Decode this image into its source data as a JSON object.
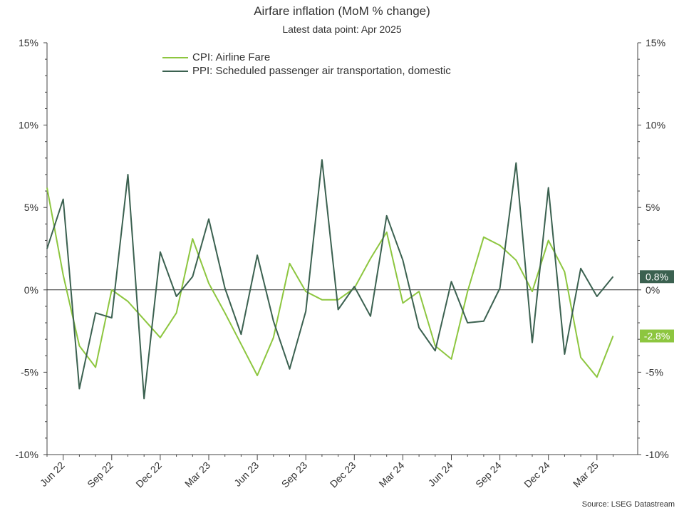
{
  "title": "Airfare inflation (MoM % change)",
  "subtitle": "Latest data point: Apr 2025",
  "source": "Source: LSEG Datastream",
  "legend": [
    {
      "label": "CPI: Airline Fare",
      "color": "#8dc63f"
    },
    {
      "label": "PPI: Scheduled passenger air transportation, domestic",
      "color": "#3b6150"
    }
  ],
  "chart_data": {
    "type": "line",
    "title": "Airfare inflation (MoM % change)",
    "subtitle": "Latest data point: Apr 2025",
    "x": [
      "May 22",
      "Jun 22",
      "Jul 22",
      "Aug 22",
      "Sep 22",
      "Oct 22",
      "Nov 22",
      "Dec 22",
      "Jan 23",
      "Feb 23",
      "Mar 23",
      "Apr 23",
      "May 23",
      "Jun 23",
      "Jul 23",
      "Aug 23",
      "Sep 23",
      "Oct 23",
      "Nov 23",
      "Dec 23",
      "Jan 24",
      "Feb 24",
      "Mar 24",
      "Apr 24",
      "May 24",
      "Jun 24",
      "Jul 24",
      "Aug 24",
      "Sep 24",
      "Oct 24",
      "Nov 24",
      "Dec 24",
      "Jan 25",
      "Feb 25",
      "Mar 25",
      "Apr 25"
    ],
    "x_tick_labels": [
      "Jun 22",
      "Sep 22",
      "Dec 22",
      "Mar 23",
      "Jun 23",
      "Sep 23",
      "Dec 23",
      "Mar 24",
      "Jun 24",
      "Sep 24",
      "Dec 24",
      "Mar 25"
    ],
    "series": [
      {
        "name": "CPI: Airline Fare",
        "color": "#8dc63f",
        "values": [
          6.2,
          0.9,
          -3.4,
          -4.7,
          0.0,
          -0.7,
          -1.8,
          -2.9,
          -1.4,
          3.1,
          0.4,
          -1.4,
          -3.3,
          -5.2,
          -2.9,
          1.6,
          -0.1,
          -0.6,
          -0.6,
          0.1,
          1.9,
          3.5,
          -0.8,
          -0.1,
          -3.4,
          -4.2,
          -0.1,
          3.2,
          2.7,
          1.8,
          -0.1,
          3.0,
          1.1,
          -4.1,
          -5.3,
          -2.8
        ],
        "last_label": "-2.8%"
      },
      {
        "name": "PPI: Scheduled passenger air transportation, domestic",
        "color": "#3b6150",
        "values": [
          2.5,
          5.5,
          -6.0,
          -1.4,
          -1.7,
          7.0,
          -6.6,
          2.3,
          -0.4,
          0.8,
          4.3,
          0.1,
          -2.7,
          2.1,
          -1.9,
          -4.8,
          -1.3,
          7.9,
          -1.2,
          0.2,
          -1.6,
          4.5,
          1.8,
          -2.3,
          -3.7,
          0.5,
          -2.0,
          -1.9,
          0.1,
          7.7,
          -3.2,
          6.2,
          -3.9,
          1.3,
          -0.4,
          0.8
        ],
        "last_label": "0.8%"
      }
    ],
    "y_ticks": [
      15,
      10,
      5,
      0,
      -5,
      -10
    ],
    "y_tick_labels": [
      "15%",
      "10%",
      "5%",
      "0%",
      "-5%",
      "-10%"
    ],
    "ylim": [
      -10,
      15
    ],
    "grid": false,
    "legend_position": "top-left",
    "dual_axis_mirrored": true
  }
}
